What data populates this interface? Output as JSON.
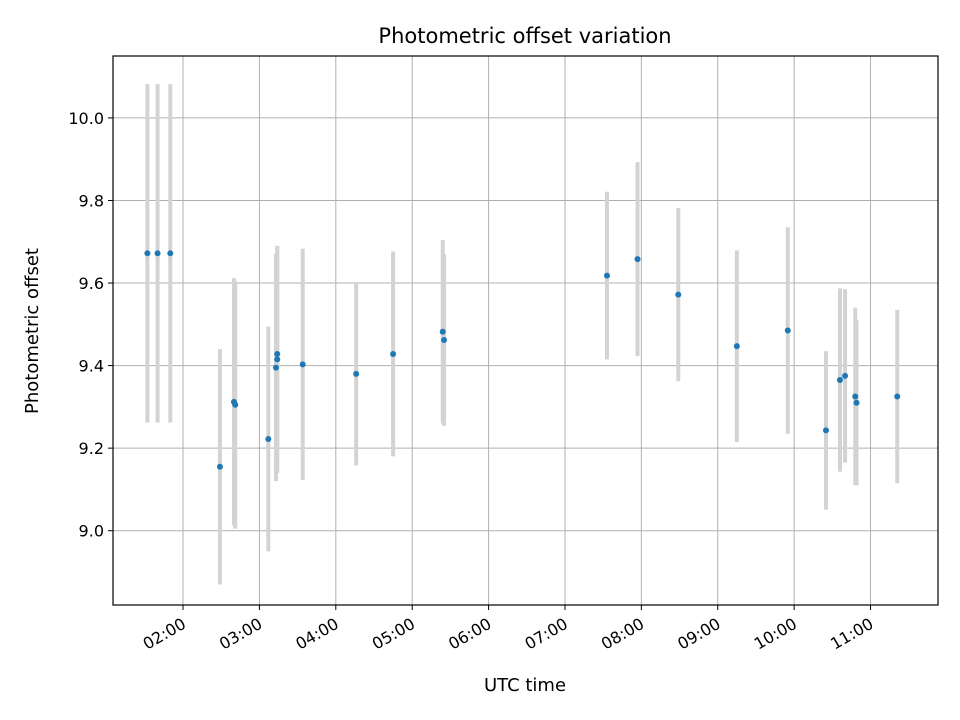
{
  "chart_data": {
    "type": "scatter",
    "title": "Photometric offset variation",
    "xlabel": "UTC time",
    "ylabel": "Photometric offset",
    "grid": true,
    "legend": "none",
    "x_tick_labels": [
      "02:00",
      "03:00",
      "04:00",
      "05:00",
      "06:00",
      "07:00",
      "08:00",
      "09:00",
      "10:00",
      "11:00"
    ],
    "y_tick_labels": [
      "9.0",
      "9.2",
      "9.4",
      "9.6",
      "9.8",
      "10.0"
    ],
    "xlim": [
      "01:05",
      "11:53"
    ],
    "ylim": [
      8.82,
      10.15
    ],
    "colors": {
      "point": "#1f77b4",
      "errorbar": "#d3d3d3",
      "grid": "#b0b0b0"
    },
    "series": [
      {
        "points": [
          {
            "x": "01:32",
            "y": 9.672,
            "yerr": 0.41
          },
          {
            "x": "01:40",
            "y": 9.672,
            "yerr": 0.41
          },
          {
            "x": "01:50",
            "y": 9.672,
            "yerr": 0.41
          },
          {
            "x": "02:29",
            "y": 9.155,
            "yerr": 0.285
          },
          {
            "x": "02:40",
            "y": 9.312,
            "yerr": 0.3
          },
          {
            "x": "02:41",
            "y": 9.305,
            "yerr": 0.3
          },
          {
            "x": "03:07",
            "y": 9.222,
            "yerr": 0.272
          },
          {
            "x": "03:13",
            "y": 9.395,
            "yerr": 0.275
          },
          {
            "x": "03:14",
            "y": 9.415,
            "yerr": 0.275
          },
          {
            "x": "03:14",
            "y": 9.428,
            "yerr": 0.262
          },
          {
            "x": "03:34",
            "y": 9.403,
            "yerr": 0.28
          },
          {
            "x": "04:16",
            "y": 9.38,
            "yerr": 0.222
          },
          {
            "x": "04:45",
            "y": 9.428,
            "yerr": 0.248
          },
          {
            "x": "05:24",
            "y": 9.482,
            "yerr": 0.222
          },
          {
            "x": "05:25",
            "y": 9.462,
            "yerr": 0.208
          },
          {
            "x": "07:33",
            "y": 9.618,
            "yerr": 0.203
          },
          {
            "x": "07:57",
            "y": 9.658,
            "yerr": 0.235
          },
          {
            "x": "08:29",
            "y": 9.572,
            "yerr": 0.21
          },
          {
            "x": "09:15",
            "y": 9.447,
            "yerr": 0.232
          },
          {
            "x": "09:55",
            "y": 9.485,
            "yerr": 0.25
          },
          {
            "x": "10:25",
            "y": 9.243,
            "yerr": 0.192
          },
          {
            "x": "10:36",
            "y": 9.365,
            "yerr": 0.222
          },
          {
            "x": "10:40",
            "y": 9.375,
            "yerr": 0.21
          },
          {
            "x": "10:48",
            "y": 9.325,
            "yerr": 0.215
          },
          {
            "x": "10:49",
            "y": 9.31,
            "yerr": 0.2
          },
          {
            "x": "11:21",
            "y": 9.325,
            "yerr": 0.21
          }
        ]
      }
    ]
  }
}
